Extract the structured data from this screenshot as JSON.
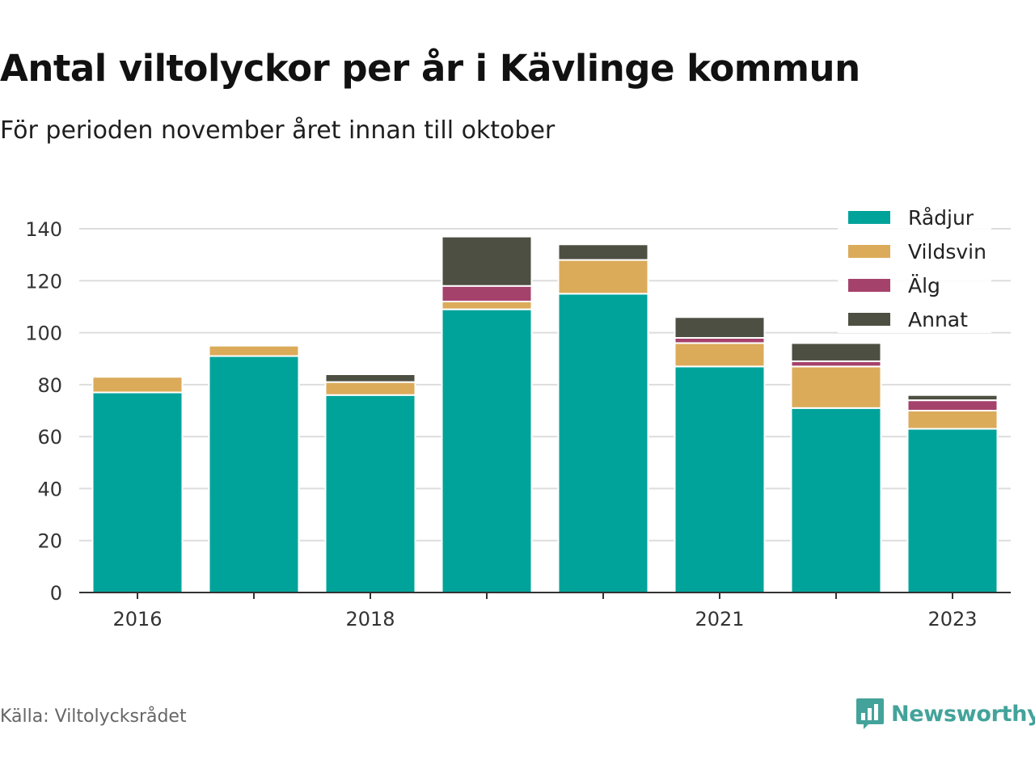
{
  "title": "Antal viltolyckor per år i Kävlinge kommun",
  "subtitle": "För perioden november året innan till oktober",
  "source": "Källa: Viltolycksrådet",
  "brand": "Newsworthy",
  "brand_icon": "bar-chart-speech-icon",
  "colors": {
    "brand": "#43a39a",
    "grid": "#dddddd",
    "axis": "#333333"
  },
  "chart_data": {
    "type": "bar",
    "stacked": true,
    "categories": [
      "2016",
      "2017",
      "2018",
      "2019",
      "2020",
      "2021",
      "2022",
      "2023"
    ],
    "x_tick_labels": [
      "2016",
      "",
      "2018",
      "",
      "",
      "2021",
      "",
      "2023"
    ],
    "series": [
      {
        "name": "Rådjur",
        "color": "#00a39a",
        "values": [
          77,
          91,
          76,
          109,
          115,
          87,
          71,
          63
        ]
      },
      {
        "name": "Vildsvin",
        "color": "#dbab5a",
        "values": [
          6,
          4,
          5,
          3,
          13,
          9,
          16,
          7
        ]
      },
      {
        "name": "Älg",
        "color": "#a5426b",
        "values": [
          0,
          0,
          0,
          6,
          0,
          2,
          2,
          4
        ]
      },
      {
        "name": "Annat",
        "color": "#4d4f42",
        "values": [
          0,
          0,
          3,
          19,
          6,
          8,
          7,
          2
        ]
      }
    ],
    "yticks": [
      0,
      20,
      40,
      60,
      80,
      100,
      120,
      140
    ],
    "ylim": [
      0,
      140
    ],
    "grid": true,
    "legend": "top-right"
  }
}
